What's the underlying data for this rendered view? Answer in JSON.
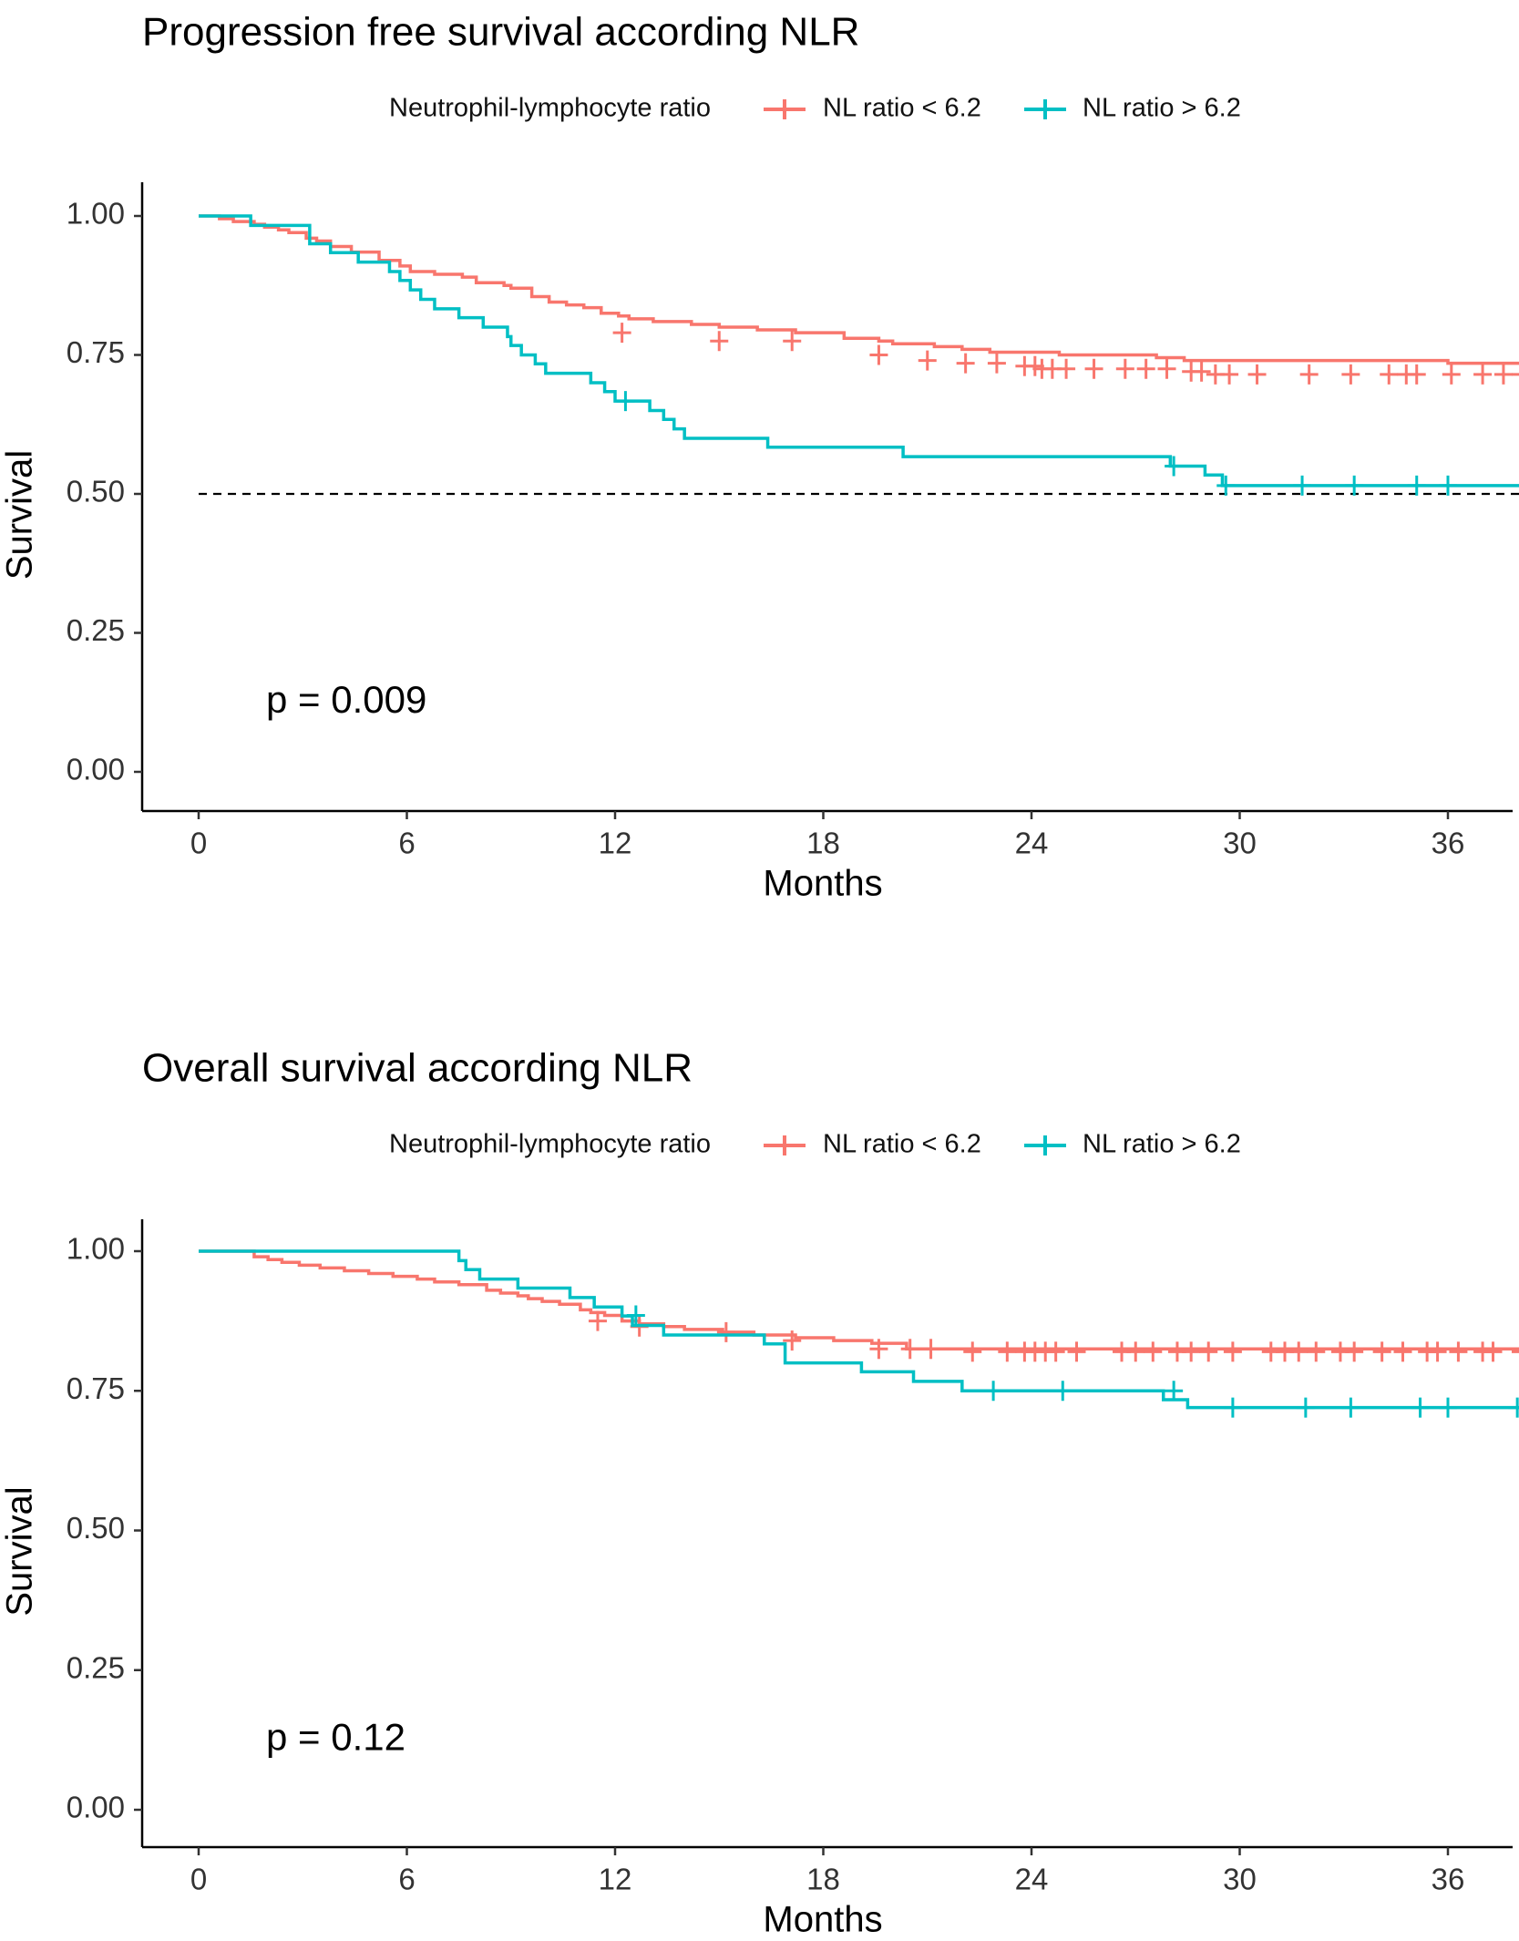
{
  "colors": {
    "low": "#F8766D",
    "high": "#00BFC4"
  },
  "chart_data": [
    {
      "type": "line",
      "subtype": "kaplan-meier-step",
      "title": "Progression free survival according NLR",
      "legend_title": "Neutrophil-lymphocyte ratio",
      "legend_position": "top",
      "xlabel": "Months",
      "ylabel": "Survival",
      "xlim": [
        0,
        38.5
      ],
      "ylim": [
        0,
        1
      ],
      "xticks": [
        "0",
        "6",
        "12",
        "18",
        "24",
        "30",
        "36"
      ],
      "yticks": [
        "0.00",
        "0.25",
        "0.50",
        "0.75",
        "1.00"
      ],
      "p_value": "p = 0.009",
      "median_line": {
        "y": 0.5,
        "x_end": 38.2
      },
      "series": [
        {
          "name": "NL ratio < 6.2",
          "color_key": "low",
          "steps": [
            [
              0,
              1.0
            ],
            [
              0.6,
              0.995
            ],
            [
              1.0,
              0.99
            ],
            [
              1.6,
              0.985
            ],
            [
              1.9,
              0.98
            ],
            [
              2.3,
              0.975
            ],
            [
              2.6,
              0.97
            ],
            [
              3.1,
              0.96
            ],
            [
              3.4,
              0.955
            ],
            [
              3.8,
              0.945
            ],
            [
              4.4,
              0.935
            ],
            [
              5.2,
              0.92
            ],
            [
              5.8,
              0.91
            ],
            [
              6.1,
              0.9
            ],
            [
              6.8,
              0.895
            ],
            [
              7.6,
              0.89
            ],
            [
              8.0,
              0.88
            ],
            [
              8.8,
              0.875
            ],
            [
              9.0,
              0.87
            ],
            [
              9.6,
              0.855
            ],
            [
              10.1,
              0.845
            ],
            [
              10.6,
              0.84
            ],
            [
              11.1,
              0.835
            ],
            [
              11.6,
              0.825
            ],
            [
              12.1,
              0.82
            ],
            [
              12.4,
              0.815
            ],
            [
              13.1,
              0.81
            ],
            [
              14.2,
              0.805
            ],
            [
              15.0,
              0.8
            ],
            [
              16.1,
              0.795
            ],
            [
              17.2,
              0.79
            ],
            [
              18.6,
              0.78
            ],
            [
              19.6,
              0.775
            ],
            [
              20.0,
              0.77
            ],
            [
              21.2,
              0.765
            ],
            [
              22.0,
              0.76
            ],
            [
              22.8,
              0.755
            ],
            [
              24.8,
              0.75
            ],
            [
              27.6,
              0.745
            ],
            [
              28.4,
              0.74
            ],
            [
              36.0,
              0.735
            ],
            [
              38.5,
              0.735
            ]
          ],
          "censors": [
            [
              12.2,
              0.79
            ],
            [
              15.0,
              0.775
            ],
            [
              17.1,
              0.775
            ],
            [
              19.6,
              0.75
            ],
            [
              21.0,
              0.74
            ],
            [
              22.1,
              0.735
            ],
            [
              23.0,
              0.735
            ],
            [
              23.8,
              0.73
            ],
            [
              24.1,
              0.73
            ],
            [
              24.3,
              0.725
            ],
            [
              24.6,
              0.725
            ],
            [
              25.0,
              0.725
            ],
            [
              25.8,
              0.725
            ],
            [
              26.7,
              0.725
            ],
            [
              27.3,
              0.725
            ],
            [
              27.9,
              0.725
            ],
            [
              28.6,
              0.72
            ],
            [
              28.9,
              0.72
            ],
            [
              29.3,
              0.715
            ],
            [
              29.7,
              0.715
            ],
            [
              30.5,
              0.715
            ],
            [
              32.0,
              0.715
            ],
            [
              33.2,
              0.715
            ],
            [
              34.3,
              0.715
            ],
            [
              34.8,
              0.715
            ],
            [
              35.1,
              0.715
            ],
            [
              36.1,
              0.715
            ],
            [
              37.0,
              0.715
            ],
            [
              37.6,
              0.715
            ],
            [
              38.1,
              0.715
            ]
          ]
        },
        {
          "name": "NL ratio > 6.2",
          "color_key": "high",
          "steps": [
            [
              0,
              1.0
            ],
            [
              1.5,
              0.983
            ],
            [
              3.2,
              0.95
            ],
            [
              3.8,
              0.934
            ],
            [
              4.6,
              0.917
            ],
            [
              5.5,
              0.9
            ],
            [
              5.8,
              0.884
            ],
            [
              6.1,
              0.867
            ],
            [
              6.4,
              0.85
            ],
            [
              6.8,
              0.833
            ],
            [
              7.5,
              0.817
            ],
            [
              8.2,
              0.8
            ],
            [
              8.9,
              0.783
            ],
            [
              9.0,
              0.767
            ],
            [
              9.3,
              0.75
            ],
            [
              9.7,
              0.734
            ],
            [
              10.0,
              0.717
            ],
            [
              11.3,
              0.7
            ],
            [
              11.7,
              0.684
            ],
            [
              12.0,
              0.667
            ],
            [
              13.0,
              0.65
            ],
            [
              13.4,
              0.634
            ],
            [
              13.7,
              0.617
            ],
            [
              14.0,
              0.6
            ],
            [
              16.4,
              0.584
            ],
            [
              20.3,
              0.567
            ],
            [
              28.0,
              0.55
            ],
            [
              29.0,
              0.534
            ],
            [
              29.5,
              0.515
            ],
            [
              38.2,
              0.48
            ],
            [
              38.5,
              0.48
            ]
          ],
          "censors": [
            [
              12.3,
              0.667
            ],
            [
              28.1,
              0.55
            ],
            [
              29.6,
              0.515
            ],
            [
              31.8,
              0.515
            ],
            [
              33.3,
              0.515
            ],
            [
              35.1,
              0.515
            ],
            [
              36.0,
              0.515
            ]
          ]
        }
      ]
    },
    {
      "type": "line",
      "subtype": "kaplan-meier-step",
      "title": "Overall survival according NLR",
      "legend_title": "Neutrophil-lymphocyte ratio",
      "legend_position": "top",
      "xlabel": "Months",
      "ylabel": "Survival",
      "xlim": [
        0,
        38.5
      ],
      "ylim": [
        0,
        1
      ],
      "xticks": [
        "0",
        "6",
        "12",
        "18",
        "24",
        "30",
        "36"
      ],
      "yticks": [
        "0.00",
        "0.25",
        "0.50",
        "0.75",
        "1.00"
      ],
      "p_value": "p = 0.12",
      "median_line": null,
      "series": [
        {
          "name": "NL ratio < 6.2",
          "color_key": "low",
          "steps": [
            [
              0,
              1.0
            ],
            [
              1.6,
              0.99
            ],
            [
              2.0,
              0.985
            ],
            [
              2.4,
              0.98
            ],
            [
              2.9,
              0.975
            ],
            [
              3.5,
              0.97
            ],
            [
              4.2,
              0.965
            ],
            [
              4.9,
              0.96
            ],
            [
              5.6,
              0.955
            ],
            [
              6.3,
              0.95
            ],
            [
              6.8,
              0.945
            ],
            [
              7.5,
              0.94
            ],
            [
              8.3,
              0.93
            ],
            [
              8.7,
              0.925
            ],
            [
              9.2,
              0.92
            ],
            [
              9.5,
              0.915
            ],
            [
              9.9,
              0.91
            ],
            [
              10.4,
              0.905
            ],
            [
              11.0,
              0.895
            ],
            [
              11.3,
              0.89
            ],
            [
              11.7,
              0.885
            ],
            [
              12.2,
              0.875
            ],
            [
              12.7,
              0.87
            ],
            [
              13.4,
              0.865
            ],
            [
              14.0,
              0.86
            ],
            [
              15.1,
              0.855
            ],
            [
              16.0,
              0.85
            ],
            [
              17.2,
              0.845
            ],
            [
              18.3,
              0.84
            ],
            [
              19.4,
              0.835
            ],
            [
              20.4,
              0.825
            ],
            [
              38.5,
              0.825
            ]
          ],
          "censors": [
            [
              11.5,
              0.875
            ],
            [
              12.7,
              0.865
            ],
            [
              15.2,
              0.855
            ],
            [
              17.1,
              0.84
            ],
            [
              19.6,
              0.825
            ],
            [
              20.5,
              0.825
            ],
            [
              21.1,
              0.825
            ],
            [
              22.3,
              0.82
            ],
            [
              23.3,
              0.82
            ],
            [
              23.8,
              0.82
            ],
            [
              24.1,
              0.82
            ],
            [
              24.4,
              0.82
            ],
            [
              24.7,
              0.82
            ],
            [
              25.3,
              0.82
            ],
            [
              26.6,
              0.82
            ],
            [
              27.0,
              0.82
            ],
            [
              27.5,
              0.82
            ],
            [
              28.2,
              0.82
            ],
            [
              28.6,
              0.82
            ],
            [
              29.1,
              0.82
            ],
            [
              29.8,
              0.82
            ],
            [
              30.9,
              0.82
            ],
            [
              31.3,
              0.82
            ],
            [
              31.7,
              0.82
            ],
            [
              32.2,
              0.82
            ],
            [
              32.9,
              0.82
            ],
            [
              33.3,
              0.82
            ],
            [
              34.1,
              0.82
            ],
            [
              34.7,
              0.82
            ],
            [
              35.4,
              0.82
            ],
            [
              35.7,
              0.82
            ],
            [
              36.3,
              0.82
            ],
            [
              37.0,
              0.82
            ],
            [
              37.3,
              0.82
            ],
            [
              38.1,
              0.82
            ]
          ]
        },
        {
          "name": "NL ratio > 6.2",
          "color_key": "high",
          "steps": [
            [
              0,
              1.0
            ],
            [
              7.5,
              0.983
            ],
            [
              7.7,
              0.967
            ],
            [
              8.1,
              0.95
            ],
            [
              9.2,
              0.934
            ],
            [
              10.7,
              0.917
            ],
            [
              11.4,
              0.9
            ],
            [
              12.2,
              0.884
            ],
            [
              12.5,
              0.867
            ],
            [
              13.4,
              0.85
            ],
            [
              16.3,
              0.834
            ],
            [
              16.9,
              0.8
            ],
            [
              19.1,
              0.784
            ],
            [
              20.6,
              0.767
            ],
            [
              22.0,
              0.75
            ],
            [
              27.8,
              0.734
            ],
            [
              28.5,
              0.72
            ],
            [
              38.2,
              0.7
            ],
            [
              38.5,
              0.7
            ]
          ],
          "censors": [
            [
              12.6,
              0.885
            ],
            [
              22.9,
              0.75
            ],
            [
              24.9,
              0.75
            ],
            [
              28.1,
              0.75
            ],
            [
              29.8,
              0.72
            ],
            [
              31.9,
              0.72
            ],
            [
              33.2,
              0.72
            ],
            [
              35.2,
              0.72
            ],
            [
              36.0,
              0.72
            ],
            [
              38.0,
              0.72
            ]
          ]
        }
      ]
    }
  ]
}
